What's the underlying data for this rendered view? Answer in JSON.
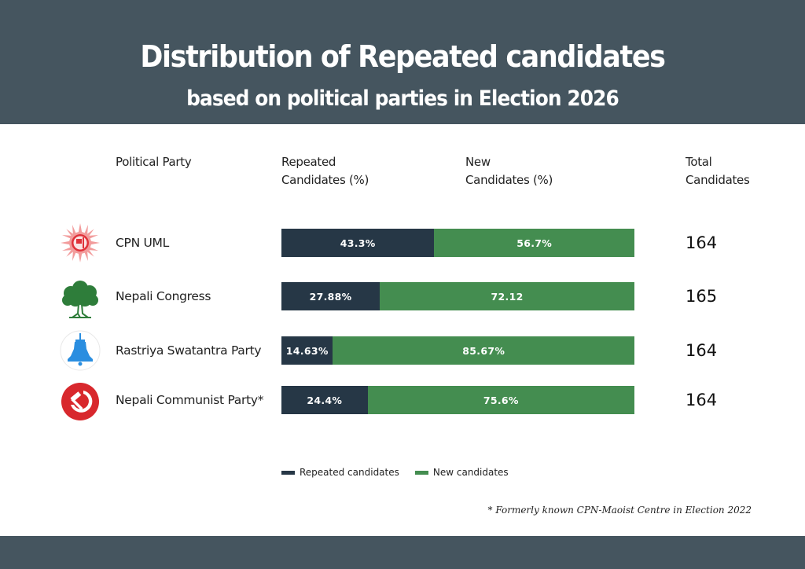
{
  "header": {
    "title": "Distribution of Repeated candidates",
    "subtitle": "based on political parties in Election 2026"
  },
  "columns": {
    "party": "Political Party",
    "repeated_line1": "Repeated",
    "repeated_line2": "Candidates (%)",
    "new_line1": "New",
    "new_line2": "Candidates (%)",
    "total_line1": "Total",
    "total_line2": "Candidates"
  },
  "colors": {
    "header_bg": "#45555f",
    "repeated": "#263746",
    "new": "#448d50"
  },
  "chart_data": {
    "type": "bar",
    "orientation": "horizontal",
    "stacked": true,
    "title": "Distribution of Repeated candidates",
    "subtitle": "based on political parties in Election 2026",
    "categories": [
      "CPN UML",
      "Nepali Congress",
      "Rastriya Swatantra Party",
      "Nepali Communist Party*"
    ],
    "series": [
      {
        "name": "Repeated candidates",
        "values": [
          43.3,
          27.88,
          14.63,
          24.4
        ],
        "labels": [
          "43.3%",
          "27.88%",
          "14.63%",
          "24.4%"
        ]
      },
      {
        "name": "New candidates",
        "values": [
          56.7,
          72.12,
          85.67,
          75.6
        ],
        "labels": [
          "56.7%",
          "72.12",
          "85.67%",
          "75.6%"
        ]
      }
    ],
    "totals": [
      164,
      165,
      164,
      164
    ],
    "xlabel": "",
    "ylabel": "",
    "xlim": [
      0,
      100
    ],
    "grid": false,
    "legend": "bottom"
  },
  "rows": [
    {
      "logo": "cpn-uml-sun-icon",
      "name": "CPN UML",
      "total": "164"
    },
    {
      "logo": "nepali-congress-tree-icon",
      "name": "Nepali Congress",
      "total": "165"
    },
    {
      "logo": "rsp-bell-icon",
      "name": "Rastriya Swatantra Party",
      "total": "164"
    },
    {
      "logo": "hammer-sickle-icon",
      "name": "Nepali Communist Party*",
      "total": "164"
    }
  ],
  "legend": {
    "repeated": "Repeated candidates",
    "new": "New candidates"
  },
  "footnote": "* Formerly known CPN-Maoist Centre in Election 2022"
}
